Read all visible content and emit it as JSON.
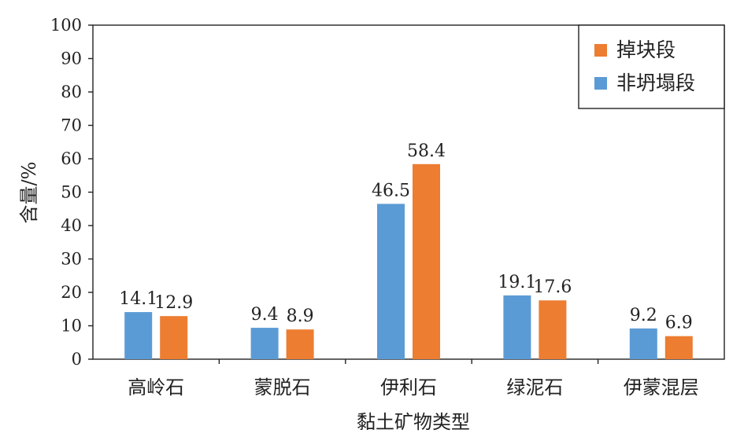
{
  "chart_data": {
    "type": "bar",
    "xlabel": "黏土矿物类型",
    "ylabel": "含量/%",
    "ylim": [
      0,
      100
    ],
    "yticks": [
      0,
      10,
      20,
      30,
      40,
      50,
      60,
      70,
      80,
      90,
      100
    ],
    "categories": [
      "高岭石",
      "蒙脱石",
      "伊利石",
      "绿泥石",
      "伊蒙混层"
    ],
    "series": [
      {
        "name": "非坍塌段",
        "color": "#5b9bd5",
        "values": [
          14.1,
          9.4,
          46.5,
          19.1,
          9.2
        ]
      },
      {
        "name": "掉块段",
        "color": "#ed7d31",
        "values": [
          12.9,
          8.9,
          58.4,
          17.6,
          6.9
        ]
      }
    ],
    "data_labels": [
      [
        "14.1",
        "9.4",
        "46.5",
        "19.1",
        "9.2"
      ],
      [
        "12.9",
        "8.9",
        "58.4",
        "17.6",
        "6.9"
      ]
    ],
    "legend": {
      "position": "top-right",
      "order": [
        1,
        0
      ]
    },
    "grid": false
  }
}
